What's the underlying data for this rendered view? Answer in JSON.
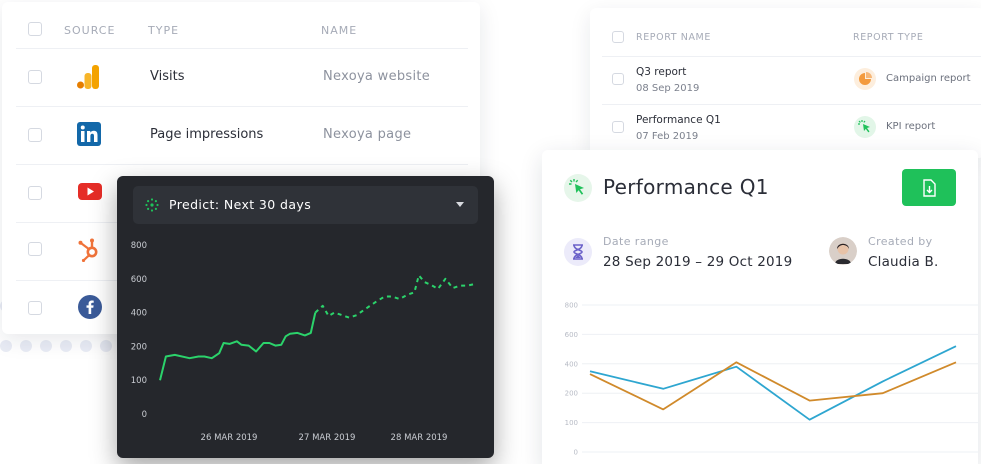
{
  "source_table": {
    "headers": {
      "source": "SOURCE",
      "type": "TYPE",
      "name": "NAME"
    },
    "rows": [
      {
        "icon": "google-analytics-icon",
        "type": "Visits",
        "name": "Nexoya website"
      },
      {
        "icon": "linkedin-icon",
        "type": "Page impressions",
        "name": "Nexoya page"
      },
      {
        "icon": "youtube-icon",
        "type": "",
        "name": ""
      },
      {
        "icon": "hubspot-icon",
        "type": "",
        "name": ""
      },
      {
        "icon": "facebook-icon",
        "type": "",
        "name": ""
      }
    ]
  },
  "report_table": {
    "headers": {
      "name": "REPORT NAME",
      "type": "REPORT TYPE"
    },
    "rows": [
      {
        "name": "Q3 report",
        "date": "08 Sep 2019",
        "type": "Campaign report",
        "type_icon": "pie-chart-icon",
        "type_color": "#f39a3d"
      },
      {
        "name": "Performance Q1",
        "date": "07 Feb 2019",
        "type": "KPI report",
        "type_icon": "cursor-click-icon",
        "type_color": "#1fc15a"
      }
    ]
  },
  "predict": {
    "select_label": "Predict: Next 30 days"
  },
  "performance": {
    "title": "Performance Q1",
    "date_range_label": "Date range",
    "date_range_value": "28 Sep 2019 – 29 Oct 2019",
    "created_by_label": "Created by",
    "created_by_value": "Claudia B."
  },
  "colors": {
    "accent_green": "#1fc15a",
    "dark_card": "#25272c",
    "line_blue": "#2ea6d0",
    "line_orange": "#d08a2b"
  },
  "chart_data": [
    {
      "type": "line",
      "title": "",
      "xlabel": "",
      "ylabel": "",
      "ylim": [
        0,
        800
      ],
      "yticks": [
        0,
        100,
        200,
        400,
        600,
        800
      ],
      "xticks": [
        "26 MAR 2019",
        "27 MAR 2019",
        "28 MAR 2019"
      ],
      "grid": false,
      "series": [
        {
          "style": "solid",
          "x": [
            0,
            0.4,
            1,
            2,
            2.6,
            3,
            3.5,
            4,
            4.3,
            4.7,
            5.2,
            5.5,
            6,
            6.5,
            7,
            7.4,
            7.8,
            8.2,
            8.5,
            8.8,
            9.3,
            9.8,
            10.2,
            10.5
          ],
          "y": [
            100,
            170,
            175,
            165,
            170,
            170,
            165,
            180,
            220,
            215,
            230,
            210,
            205,
            185,
            220,
            220,
            205,
            210,
            260,
            275,
            280,
            265,
            280,
            400
          ]
        },
        {
          "style": "dashed",
          "x": [
            10.5,
            11,
            11.4,
            11.8,
            12.3,
            12.8,
            13.3,
            13.7,
            14.2,
            14.7,
            15.2,
            15.7,
            16.2,
            16.7,
            17.2,
            17.5,
            17.9,
            18.3,
            18.8,
            19.3,
            19.8,
            20.3,
            20.8,
            21.3
          ],
          "y": [
            400,
            440,
            380,
            400,
            385,
            370,
            385,
            410,
            440,
            470,
            495,
            495,
            480,
            505,
            520,
            620,
            580,
            565,
            540,
            600,
            545,
            560,
            560,
            570
          ]
        }
      ]
    },
    {
      "type": "line",
      "title": "",
      "xlabel": "",
      "ylabel": "",
      "ylim": [
        0,
        800
      ],
      "yticks": [
        0,
        100,
        200,
        400,
        600,
        800
      ],
      "grid": true,
      "series": [
        {
          "color": "#2ea6d0",
          "x": [
            0,
            1,
            2,
            3,
            4,
            5
          ],
          "y": [
            350,
            230,
            380,
            110,
            280,
            520
          ]
        },
        {
          "color": "#d08a2b",
          "x": [
            0,
            1,
            2,
            3,
            4,
            5
          ],
          "y": [
            330,
            145,
            410,
            175,
            200,
            410
          ]
        }
      ]
    }
  ]
}
